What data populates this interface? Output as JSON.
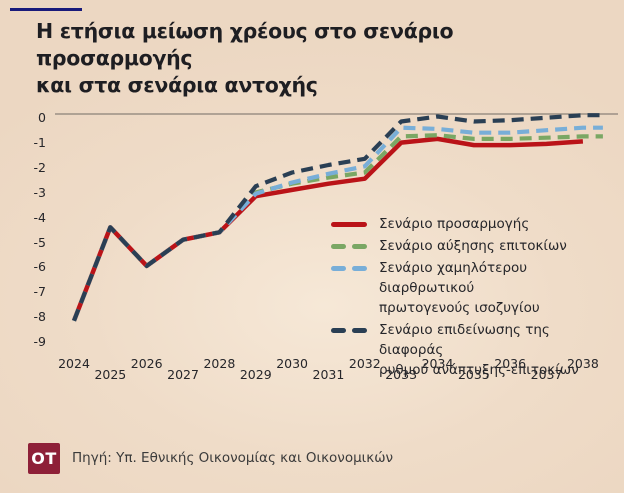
{
  "page": {
    "title": "Η ετήσια μείωση χρέους στο σενάριο προσαρμογής\nκαι στα σενάρια αντοχής",
    "logo_text": "OT",
    "source_label": "Πηγή: Υπ. Εθνικής Οικονομίας και Οικονομικών"
  },
  "colors": {
    "background": "#efdcc8",
    "title_text": "#1e1e22",
    "accent_bar": "#191a7a",
    "axis_line": "#8a8178",
    "tick_text": "#26262a",
    "logo_bg": "#8e2038",
    "logo_text": "#ffffff",
    "source_text": "#3b3b3b"
  },
  "chart_data": {
    "type": "line",
    "title": "Η ετήσια μείωση χρέους στο σενάριο προσαρμογής και στα σενάρια αντοχής",
    "xlabel": "",
    "ylabel": "",
    "x": [
      2024,
      2025,
      2026,
      2027,
      2028,
      2029,
      2030,
      2031,
      2032,
      2033,
      2034,
      2035,
      2036,
      2037,
      2038
    ],
    "y_ticks": [
      0,
      -1,
      -2,
      -3,
      -4,
      -5,
      -6,
      -7,
      -8,
      -9
    ],
    "ylim": [
      -9,
      0
    ],
    "grid": false,
    "legend_position": "middle-right",
    "series": [
      {
        "name": "Σενάριο προσαρμογής",
        "label_display": "Σενάριο προσαρμογής",
        "color": "#ba1318",
        "style": "solid",
        "values": [
          -8.3,
          -4.55,
          -6.1,
          -5.05,
          -4.75,
          -3.3,
          -3.05,
          -2.8,
          -2.6,
          -1.15,
          -1.0,
          -1.25,
          -1.25,
          -1.2,
          -1.1
        ]
      },
      {
        "name": "Σενάριο αύξησης επιτοκίων",
        "label_display": "Σενάριο αύξησης επιτοκίων",
        "color": "#7aa764",
        "style": "dashed",
        "values": [
          -8.3,
          -4.55,
          -6.1,
          -5.05,
          -4.75,
          -3.15,
          -2.8,
          -2.55,
          -2.35,
          -0.9,
          -0.85,
          -1.0,
          -1.0,
          -0.95,
          -0.9
        ]
      },
      {
        "name": "Σενάριο χαμηλότερου διαρθρωτικού πρωτογενούς ισοζυγίου",
        "label_display": "Σενάριο χαμηλότερου διαρθρωτικού\nπρωτογενούς ισοζυγίου",
        "color": "#78aed8",
        "style": "dashed",
        "values": [
          -8.3,
          -4.55,
          -6.1,
          -5.05,
          -4.75,
          -3.2,
          -2.75,
          -2.4,
          -2.1,
          -0.55,
          -0.6,
          -0.75,
          -0.75,
          -0.65,
          -0.55
        ]
      },
      {
        "name": "Σενάριο επιδείνωσης της διαφοράς ρυθμού ανάπτυξης-επιτοκίων",
        "label_display": "Σενάριο επιδείνωσης της διαφοράς\nρυθμού ανάπτυξης-επιτοκίων",
        "color": "#2a3f54",
        "style": "dashed",
        "values": [
          -8.3,
          -4.55,
          -6.1,
          -5.05,
          -4.75,
          -2.9,
          -2.35,
          -2.05,
          -1.8,
          -0.3,
          -0.1,
          -0.3,
          -0.25,
          -0.15,
          -0.05
        ]
      }
    ]
  }
}
